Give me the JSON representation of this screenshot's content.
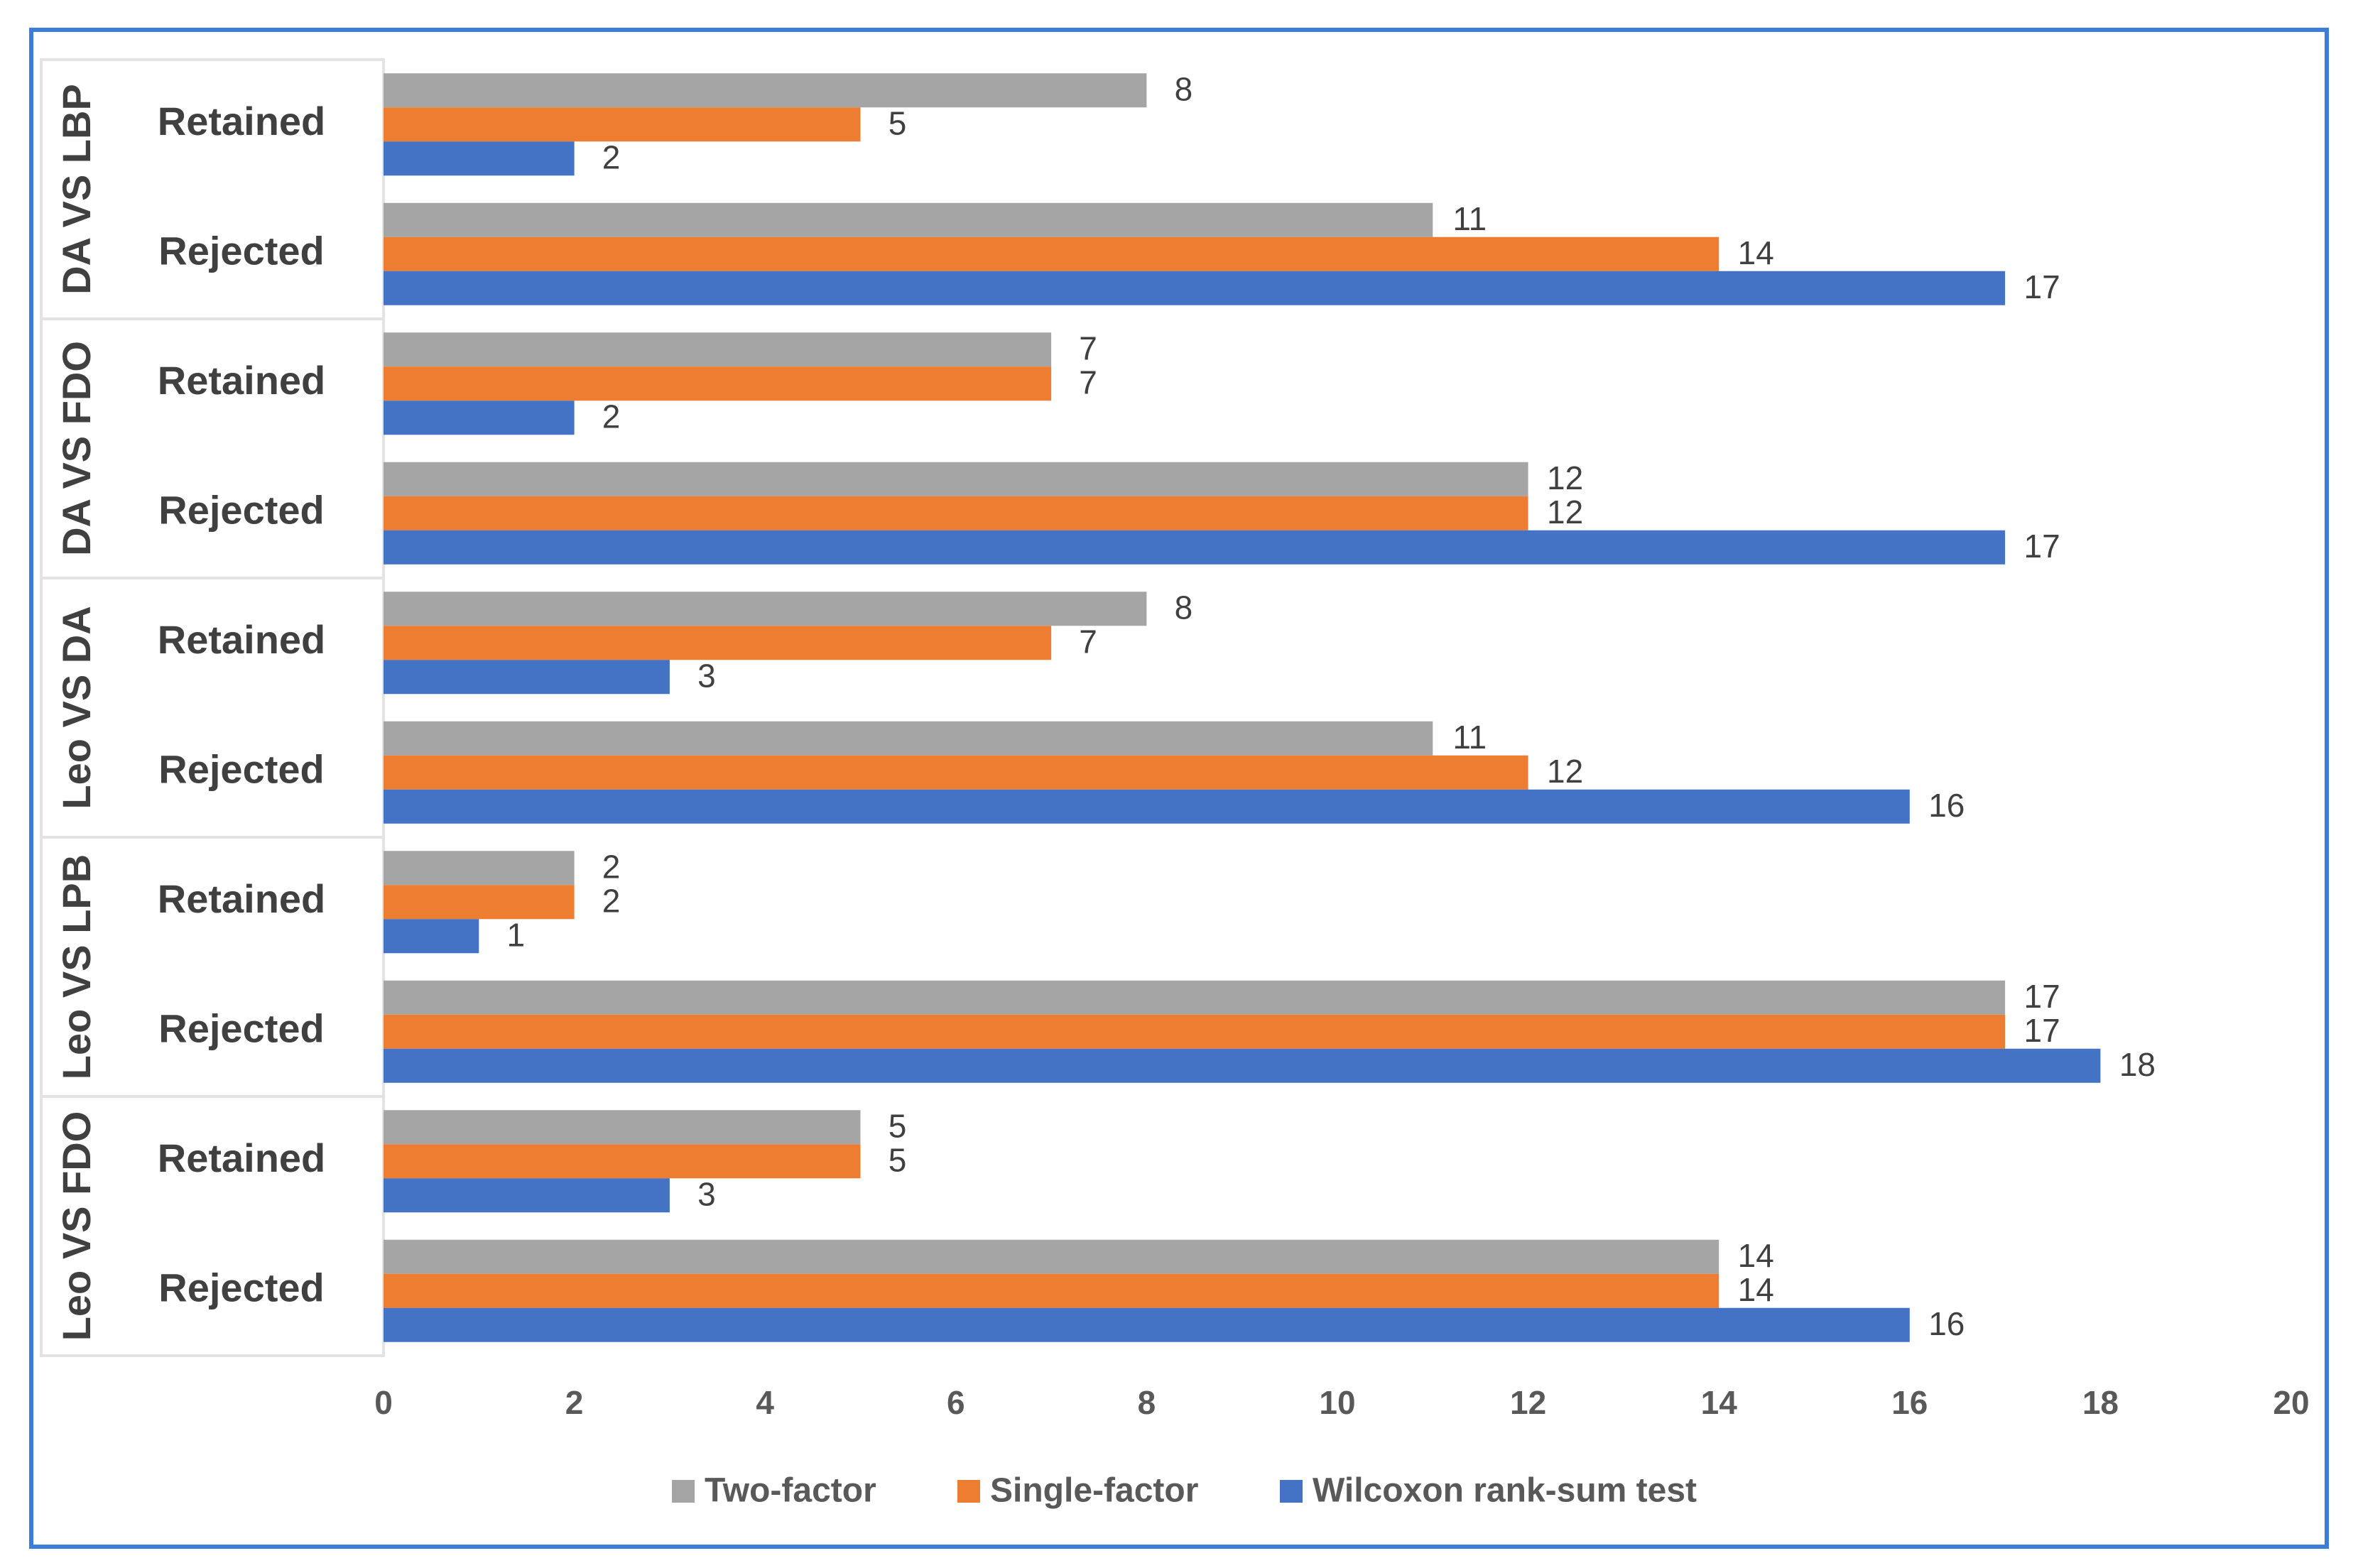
{
  "chart_data": {
    "type": "bar",
    "orientation": "horizontal",
    "title": "",
    "xlabel": "",
    "ylabel": "",
    "xlim": [
      0,
      20
    ],
    "xticks": [
      0,
      2,
      4,
      6,
      8,
      10,
      12,
      14,
      16,
      18,
      20
    ],
    "grid": false,
    "legend_position": "bottom",
    "groups": [
      {
        "label": "DA VS LBP",
        "categories": [
          {
            "label": "Retained",
            "values": [
              8,
              5,
              2
            ]
          },
          {
            "label": "Rejected",
            "values": [
              11,
              14,
              17
            ]
          }
        ]
      },
      {
        "label": "DA VS FDO",
        "categories": [
          {
            "label": "Retained",
            "values": [
              7,
              7,
              2
            ]
          },
          {
            "label": "Rejected",
            "values": [
              12,
              12,
              17
            ]
          }
        ]
      },
      {
        "label": "Leo VS DA",
        "categories": [
          {
            "label": "Retained",
            "values": [
              8,
              7,
              3
            ]
          },
          {
            "label": "Rejected",
            "values": [
              11,
              12,
              16
            ]
          }
        ]
      },
      {
        "label": "Leo VS LPB",
        "categories": [
          {
            "label": "Retained",
            "values": [
              2,
              2,
              1
            ]
          },
          {
            "label": "Rejected",
            "values": [
              17,
              17,
              18
            ]
          }
        ]
      },
      {
        "label": "Leo VS FDO",
        "categories": [
          {
            "label": "Retained",
            "values": [
              5,
              5,
              3
            ]
          },
          {
            "label": "Rejected",
            "values": [
              14,
              14,
              16
            ]
          }
        ]
      }
    ],
    "series": [
      {
        "name": "Two-factor",
        "color": "#a5a5a5"
      },
      {
        "name": "Single-factor",
        "color": "#ed7d31"
      },
      {
        "name": "Wilcoxon rank-sum test",
        "color": "#4472c4"
      }
    ]
  },
  "frame_color": "#3b7dd8"
}
